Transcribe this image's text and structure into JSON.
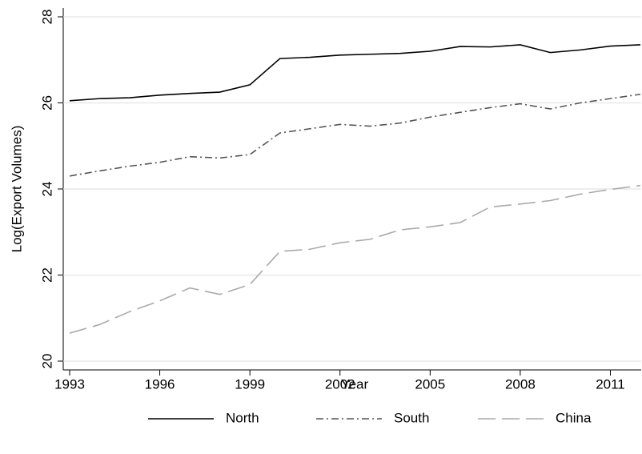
{
  "chart_data": {
    "type": "line",
    "x_label": "Year",
    "y_label": "Log(Export Volumes)",
    "x": [
      1993,
      1994,
      1995,
      1996,
      1997,
      1998,
      1999,
      2000,
      2001,
      2002,
      2003,
      2004,
      2005,
      2006,
      2007,
      2008,
      2009,
      2010,
      2011,
      2012
    ],
    "series": [
      {
        "name": "North",
        "color": "#000000",
        "dash": "none",
        "values": [
          26.05,
          26.1,
          26.12,
          26.18,
          26.22,
          26.25,
          26.42,
          27.03,
          27.06,
          27.11,
          27.13,
          27.15,
          27.2,
          27.31,
          27.3,
          27.35,
          27.17,
          27.23,
          27.32,
          27.35
        ]
      },
      {
        "name": "South",
        "color": "#555555",
        "dash": "9,4,2,4",
        "values": [
          24.3,
          24.42,
          24.53,
          24.62,
          24.75,
          24.72,
          24.8,
          25.3,
          25.4,
          25.5,
          25.46,
          25.53,
          25.67,
          25.78,
          25.89,
          25.98,
          25.86,
          26.0,
          26.1,
          26.2
        ]
      },
      {
        "name": "China",
        "color": "#aaaaaa",
        "dash": "22,8",
        "values": [
          20.65,
          20.85,
          21.15,
          21.4,
          21.7,
          21.55,
          21.78,
          22.55,
          22.6,
          22.75,
          22.83,
          23.05,
          23.12,
          23.22,
          23.58,
          23.65,
          23.73,
          23.88,
          23.99,
          24.08
        ]
      }
    ],
    "xlim": [
      1993,
      2012
    ],
    "xticks": [
      1993,
      1996,
      1999,
      2002,
      2005,
      2008,
      2011
    ],
    "ylim": [
      20,
      28
    ],
    "yticks": [
      20,
      22,
      24,
      26,
      28
    ],
    "grid": true,
    "legend": "bottom"
  }
}
